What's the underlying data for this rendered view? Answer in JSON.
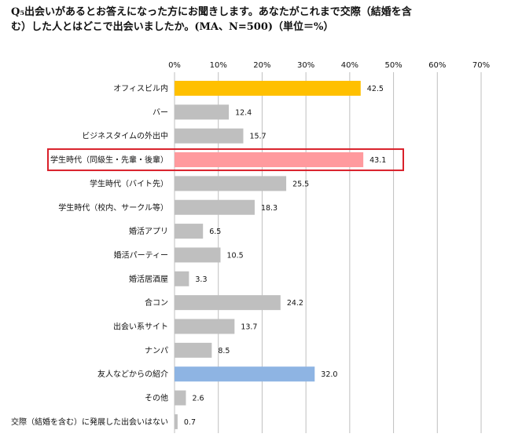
{
  "title_line1": "Q₅出会いがあるとお答えになった方にお聞きします。あなたがこれまで交際（結婚を含",
  "title_line2": "む）した人とはどこで出会いましたか。(MA、N=500)（単位＝%）",
  "chart_data": {
    "type": "bar",
    "orientation": "horizontal",
    "xlim": [
      0,
      70
    ],
    "ticks": [
      "0%",
      "10%",
      "20%",
      "30%",
      "40%",
      "50%",
      "60%",
      "70%"
    ],
    "tick_values": [
      0,
      10,
      20,
      30,
      40,
      50,
      60,
      70
    ],
    "grid": true,
    "categories": [
      "オフィスビル内",
      "バー",
      "ビジネスタイムの外出中",
      "学生時代（同級生・先輩・後輩）",
      "学生時代（バイト先）",
      "学生時代（校内、サークル等）",
      "婚活アプリ",
      "婚活パーティー",
      "婚活居酒屋",
      "合コン",
      "出会い系サイト",
      "ナンパ",
      "友人などからの紹介",
      "その他",
      "交際（結婚を含む）に発展した出会いはない"
    ],
    "values": [
      42.5,
      12.4,
      15.7,
      43.1,
      25.5,
      18.3,
      6.5,
      10.5,
      3.3,
      24.2,
      13.7,
      8.5,
      32.0,
      2.6,
      0.7
    ],
    "value_labels": [
      "42.5",
      "12.4",
      "15.7",
      "43.1",
      "25.5",
      "18.3",
      "6.5",
      "10.5",
      "3.3",
      "24.2",
      "13.7",
      "8.5",
      "32.0",
      "2.6",
      "0.7"
    ],
    "colors": {
      "default": "#bfbfbf",
      "highlight_office": "#ffc000",
      "highlight_student": "#ff9a9e",
      "highlight_friend": "#8eb4e3",
      "outline": "#d9202a",
      "grid": "#bfbfbf"
    },
    "bar_colors": [
      "highlight_office",
      "default",
      "default",
      "highlight_student",
      "default",
      "default",
      "default",
      "default",
      "default",
      "default",
      "default",
      "default",
      "highlight_friend",
      "default",
      "default"
    ],
    "outlined_index": 3
  }
}
